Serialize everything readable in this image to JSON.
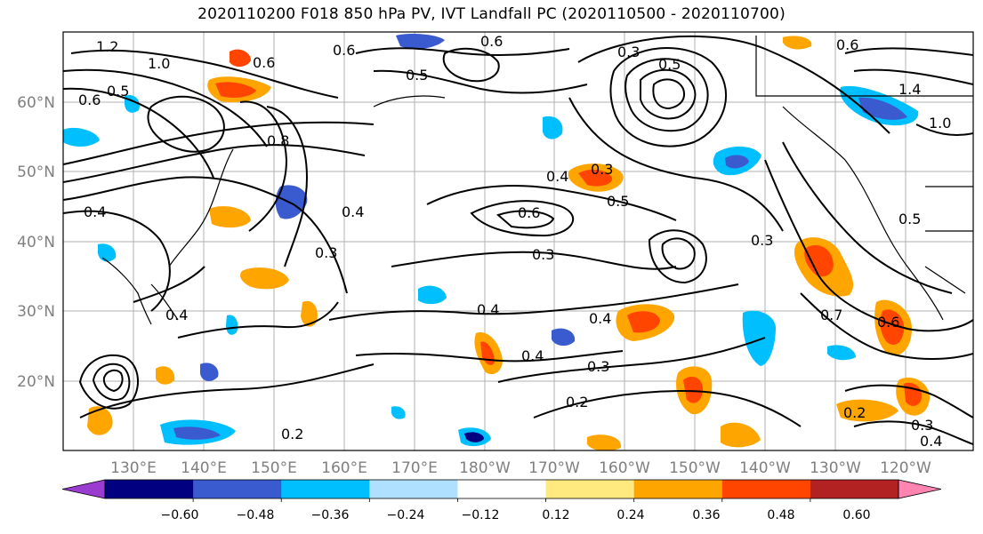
{
  "title": "2020110200 F018 850 hPa PV, IVT Landfall PC (2020110500 - 2020110700)",
  "map": {
    "lat_labels": [
      "60°N",
      "50°N",
      "40°N",
      "30°N",
      "20°N"
    ],
    "lon_labels": [
      "130°E",
      "140°E",
      "150°E",
      "160°E",
      "170°E",
      "180°W",
      "170°W",
      "160°W",
      "150°W",
      "140°W",
      "130°W",
      "120°W"
    ],
    "contour_labels": [
      "1.2",
      "1.0",
      "0.6",
      "0.5",
      "0.6",
      "0.3",
      "0.5",
      "0.6",
      "1.0",
      "0.4",
      "0.5",
      "0.6",
      "0.3",
      "0.4",
      "0.4",
      "0.3",
      "0.4",
      "0.3",
      "0.4",
      "0.7",
      "0.6",
      "0.3",
      "0.2",
      "0.2",
      "0.3",
      "0.4",
      "0.5",
      "0.2",
      "0.4",
      "0.8",
      "0.3",
      "0.4",
      "0.6",
      "0.5",
      "1.4",
      "0.6"
    ]
  },
  "colorbar": {
    "colors": [
      "#9a3ccf",
      "#000080",
      "#3a5bd0",
      "#00bfff",
      "#b0e0ff",
      "#ffffff",
      "#ffea80",
      "#ffa500",
      "#ff4500",
      "#b22222",
      "#ff85b0"
    ],
    "tick_labels": [
      "−0.60",
      "−0.48",
      "−0.36",
      "−0.24",
      "−0.12",
      "0.12",
      "0.24",
      "0.36",
      "0.48",
      "0.60"
    ]
  }
}
